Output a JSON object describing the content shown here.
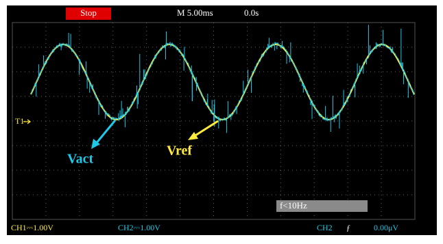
{
  "top_bar": {
    "run_state": "Stop",
    "timebase": "M 5.00ms",
    "trigger_position": "0.0s"
  },
  "traces": {
    "marker": "T1"
  },
  "annotations": {
    "vact": "Vact",
    "vref": "Vref"
  },
  "measurement": "f<10Hz",
  "status_bar": {
    "ch1": "CH1⎓1.00V",
    "ch2": "CH2⎓1.00V",
    "trigger_source": "CH2",
    "trigger_slope": "ƒ",
    "trigger_level": "0.00μV"
  }
}
